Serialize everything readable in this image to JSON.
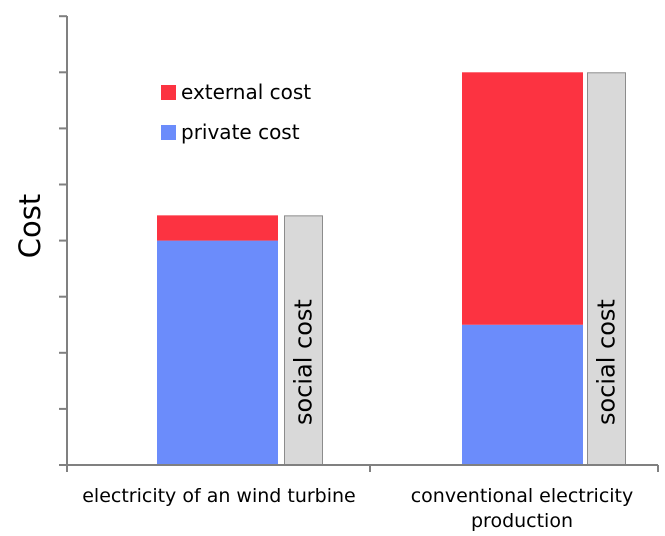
{
  "chart_data": {
    "type": "bar",
    "stacked": true,
    "ylabel": "Cost",
    "xlabel": "",
    "title": "",
    "ylim": [
      0,
      8
    ],
    "grid": false,
    "legend_position": "top-left",
    "categories": [
      [
        "electricity of an wind turbine"
      ],
      [
        "conventional electricity",
        "production"
      ]
    ],
    "series": [
      {
        "name": "private cost",
        "color": "#6b8cfb",
        "values": [
          4.0,
          2.5
        ]
      },
      {
        "name": "external cost",
        "color": "#fc3341",
        "values": [
          0.45,
          4.5
        ]
      }
    ],
    "social_cost": {
      "label": "social cost",
      "color": "#d9d9d9",
      "values": [
        4.45,
        7.0
      ]
    }
  }
}
